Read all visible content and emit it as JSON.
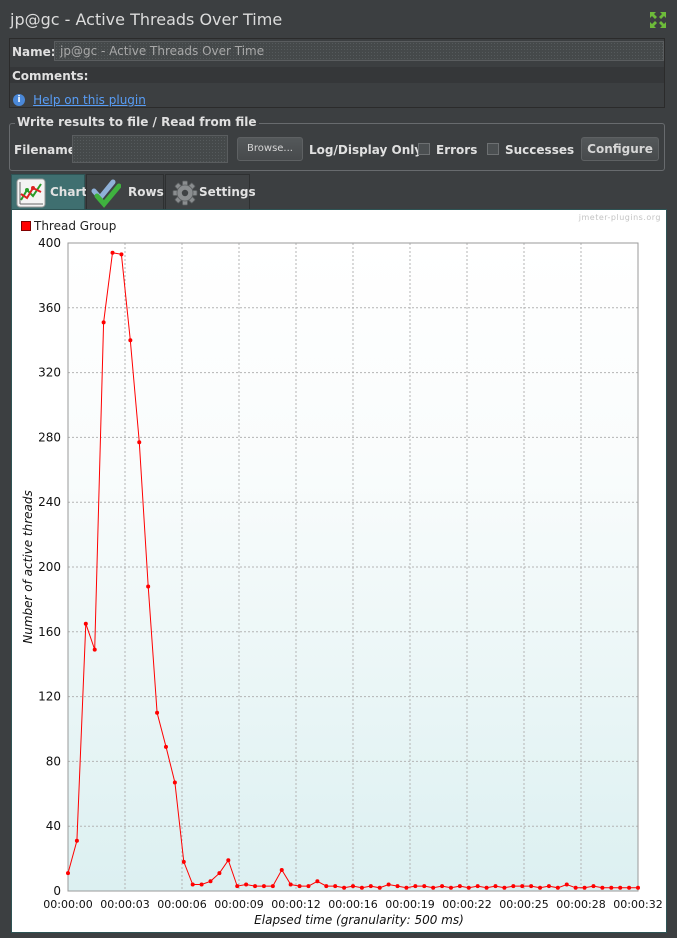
{
  "window": {
    "title": "jp@gc - Active Threads Over Time"
  },
  "form": {
    "name_label": "Name:",
    "name_value": "jp@gc - Active Threads Over Time",
    "comments_label": "Comments:",
    "help_link": "Help on this plugin"
  },
  "file_panel": {
    "legend": "Write results to file / Read from file",
    "filename_label": "Filename",
    "browse_label": "Browse...",
    "log_display_label": "Log/Display Only:",
    "errors_label": "Errors",
    "successes_label": "Successes",
    "configure_label": "Configure",
    "errors_checked": false,
    "successes_checked": false
  },
  "tabs": [
    {
      "label": "Chart",
      "icon": "chart-icon",
      "active": true
    },
    {
      "label": "Rows",
      "icon": "checkmarks-icon",
      "active": false
    },
    {
      "label": "Settings",
      "icon": "gear-icon",
      "active": false
    }
  ],
  "chart_data": {
    "type": "line",
    "watermark": "jmeter-plugins.org",
    "legend": [
      {
        "name": "Thread Group",
        "color": "#ff0000"
      }
    ],
    "xlabel": "Elapsed time (granularity: 500 ms)",
    "ylabel": "Number of active threads",
    "ylim": [
      0,
      400
    ],
    "yticks": [
      0,
      40,
      80,
      120,
      160,
      200,
      240,
      280,
      320,
      360,
      400
    ],
    "xlim_seconds": [
      0,
      32
    ],
    "xtick_labels": [
      "00:00:00",
      "00:00:03",
      "00:00:06",
      "00:00:09",
      "00:00:12",
      "00:00:16",
      "00:00:19",
      "00:00:22",
      "00:00:25",
      "00:00:28",
      "00:00:32"
    ],
    "series": [
      {
        "name": "Thread Group",
        "color": "#ff0000",
        "x_seconds": [
          0,
          0.5,
          1,
          1.5,
          2,
          2.5,
          3,
          3.5,
          4,
          4.5,
          5,
          5.5,
          6,
          6.5,
          7,
          7.5,
          8,
          8.5,
          9,
          9.5,
          10,
          10.5,
          11,
          11.5,
          12,
          12.5,
          13,
          13.5,
          14,
          14.5,
          15,
          15.5,
          16,
          16.5,
          17,
          17.5,
          18,
          18.5,
          19,
          19.5,
          20,
          20.5,
          21,
          21.5,
          22,
          22.5,
          23,
          23.5,
          24,
          24.5,
          25,
          25.5,
          26,
          26.5,
          27,
          27.5,
          28,
          28.5,
          29,
          29.5,
          30,
          30.5,
          31,
          31.5,
          32
        ],
        "values": [
          11,
          31,
          165,
          149,
          351,
          394,
          393,
          340,
          277,
          188,
          110,
          89,
          67,
          18,
          4,
          4,
          6,
          11,
          19,
          3,
          4,
          3,
          3,
          3,
          13,
          4,
          3,
          3,
          6,
          3,
          3,
          2,
          3,
          2,
          3,
          2,
          4,
          3,
          2,
          3,
          3,
          2,
          3,
          2,
          3,
          2,
          3,
          2,
          3,
          2,
          3,
          3,
          3,
          2,
          3,
          2,
          4,
          2,
          2,
          3,
          2,
          2,
          2,
          2,
          2
        ]
      }
    ]
  }
}
